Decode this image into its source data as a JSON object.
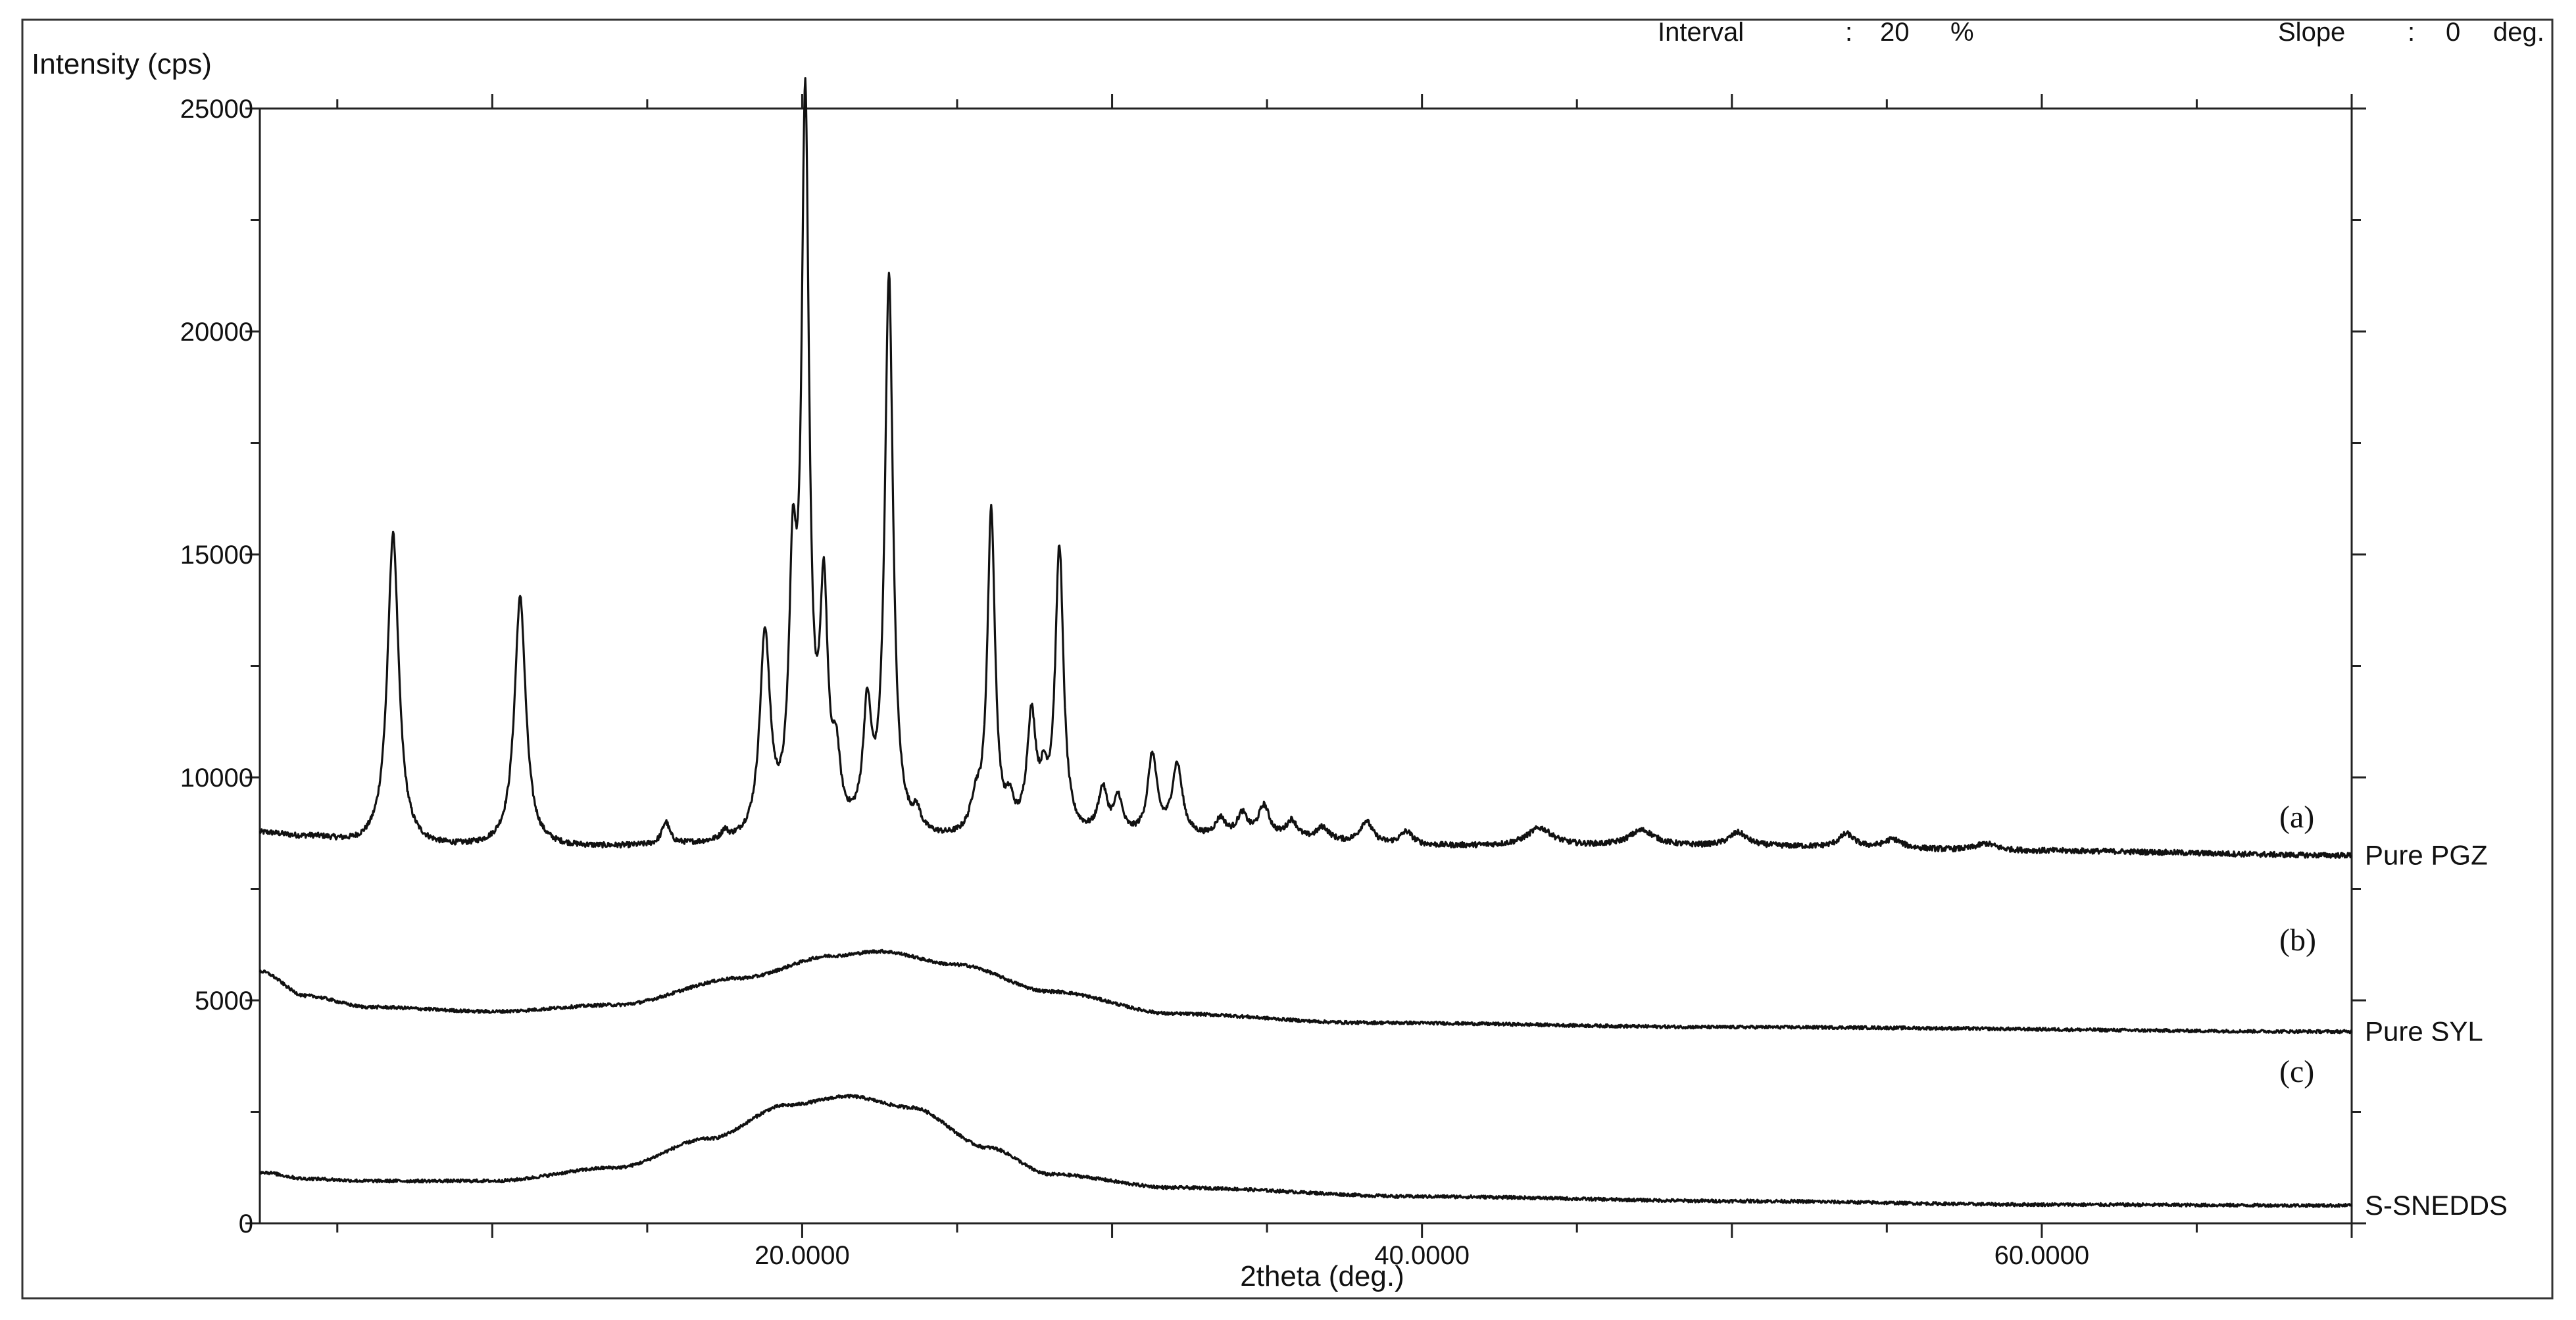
{
  "header": {
    "interval_label": "Interval",
    "interval_sep": ":",
    "interval_value": "20",
    "interval_unit": "%",
    "slope_label": "Slope",
    "slope_sep": ":",
    "slope_value": "0",
    "slope_unit": "deg."
  },
  "chart_data": {
    "type": "line",
    "xlabel": "2theta (deg.)",
    "ylabel": "Intensity (cps)",
    "xlim": [
      2.5,
      70
    ],
    "ylim": [
      0,
      25000
    ],
    "x_ticks": [
      20,
      40,
      60
    ],
    "x_tick_labels": [
      "20.0000",
      "40.0000",
      "60.0000"
    ],
    "y_ticks": [
      0,
      5000,
      10000,
      15000,
      20000,
      25000
    ],
    "y_tick_labels": [
      "0",
      "5000",
      "10000",
      "15000",
      "20000",
      "25000"
    ],
    "grid": false,
    "series": [
      {
        "name": "Pure PGZ",
        "letter": "(a)",
        "color": "#111111",
        "baseline": [
          [
            2.5,
            8750
          ],
          [
            4,
            8650
          ],
          [
            6,
            8450
          ],
          [
            8,
            8400
          ],
          [
            12,
            8400
          ],
          [
            18,
            8450
          ],
          [
            22,
            8550
          ],
          [
            26,
            8500
          ],
          [
            30,
            8600
          ],
          [
            34,
            8600
          ],
          [
            40,
            8450
          ],
          [
            50,
            8450
          ],
          [
            60,
            8350
          ],
          [
            70,
            8250
          ]
        ],
        "peaks": [
          [
            6.8,
            7000,
            0.22
          ],
          [
            10.9,
            5600,
            0.22
          ],
          [
            15.6,
            500,
            0.15
          ],
          [
            17.5,
            200,
            0.12
          ],
          [
            18.8,
            4500,
            0.2
          ],
          [
            19.7,
            5200,
            0.15
          ],
          [
            20.1,
            16000,
            0.15
          ],
          [
            20.7,
            5000,
            0.15
          ],
          [
            21.1,
            1400,
            0.15
          ],
          [
            22.1,
            2600,
            0.16
          ],
          [
            22.8,
            12500,
            0.16
          ],
          [
            23.7,
            400,
            0.15
          ],
          [
            25.6,
            700,
            0.2
          ],
          [
            26.1,
            7300,
            0.15
          ],
          [
            26.7,
            600,
            0.15
          ],
          [
            27.4,
            2600,
            0.18
          ],
          [
            27.8,
            900,
            0.15
          ],
          [
            28.3,
            6400,
            0.16
          ],
          [
            29.7,
            1000,
            0.18
          ],
          [
            30.2,
            800,
            0.16
          ],
          [
            31.3,
            1800,
            0.18
          ],
          [
            32.1,
            1600,
            0.2
          ],
          [
            33.5,
            400,
            0.2
          ],
          [
            34.2,
            500,
            0.2
          ],
          [
            34.9,
            700,
            0.22
          ],
          [
            35.8,
            400,
            0.22
          ],
          [
            36.8,
            300,
            0.25
          ],
          [
            38.2,
            500,
            0.25
          ],
          [
            39.5,
            300,
            0.25
          ],
          [
            43.8,
            400,
            0.5
          ],
          [
            47.1,
            350,
            0.5
          ],
          [
            50.2,
            300,
            0.35
          ],
          [
            53.7,
            300,
            0.3
          ],
          [
            55.2,
            200,
            0.35
          ],
          [
            58.2,
            150,
            0.4
          ]
        ],
        "noise": 60
      },
      {
        "name": "Pure SYL",
        "letter": "(b)",
        "color": "#111111",
        "baseline": [
          [
            2.5,
            5650
          ],
          [
            4,
            5100
          ],
          [
            6,
            4850
          ],
          [
            10,
            4750
          ],
          [
            14,
            4900
          ],
          [
            18,
            5500
          ],
          [
            21,
            6000
          ],
          [
            22.5,
            6100
          ],
          [
            25,
            5800
          ],
          [
            28,
            5200
          ],
          [
            32,
            4700
          ],
          [
            38,
            4500
          ],
          [
            50,
            4400
          ],
          [
            70,
            4300
          ]
        ],
        "peaks": [],
        "noise": 35
      },
      {
        "name": "S-SNEDDS",
        "letter": "(c)",
        "color": "#111111",
        "baseline": [
          [
            2.5,
            1150
          ],
          [
            4,
            1000
          ],
          [
            6,
            950
          ],
          [
            10,
            950
          ],
          [
            14,
            1250
          ],
          [
            17,
            1900
          ],
          [
            19.5,
            2650
          ],
          [
            21.5,
            2850
          ],
          [
            23.5,
            2600
          ],
          [
            26,
            1700
          ],
          [
            28,
            1100
          ],
          [
            32,
            800
          ],
          [
            40,
            600
          ],
          [
            50,
            500
          ],
          [
            60,
            420
          ],
          [
            70,
            400
          ]
        ],
        "peaks": [],
        "noise": 35
      }
    ]
  }
}
